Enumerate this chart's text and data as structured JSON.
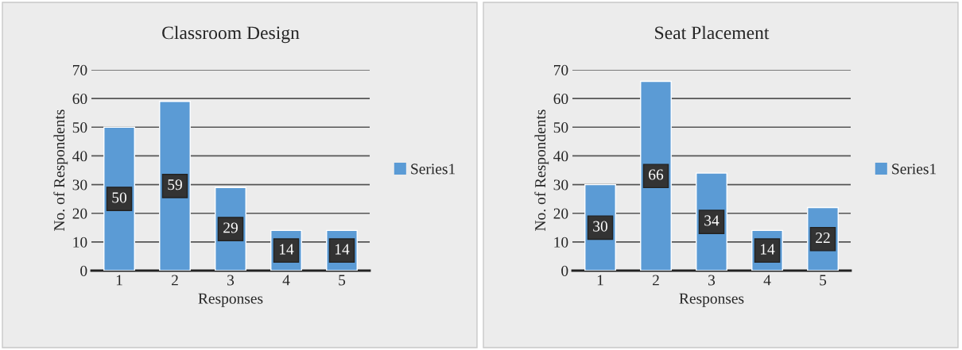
{
  "chart_data": [
    {
      "type": "bar",
      "title": "Classroom Design",
      "xlabel": "Responses",
      "ylabel": "No. of Respondents",
      "categories": [
        "1",
        "2",
        "3",
        "4",
        "5"
      ],
      "series": [
        {
          "name": "Series1",
          "color": "#5b9bd5",
          "values": [
            50,
            59,
            29,
            14,
            14
          ]
        }
      ],
      "ylim": [
        0,
        70
      ],
      "yticks": [
        0,
        10,
        20,
        30,
        40,
        50,
        60,
        70
      ],
      "grid": "y",
      "legend": "right",
      "data_labels": true
    },
    {
      "type": "bar",
      "title": "Seat Placement",
      "xlabel": "Responses",
      "ylabel": "No. of Respondents",
      "categories": [
        "1",
        "2",
        "3",
        "4",
        "5"
      ],
      "series": [
        {
          "name": "Series1",
          "color": "#5b9bd5",
          "values": [
            30,
            66,
            34,
            14,
            22
          ]
        }
      ],
      "ylim": [
        0,
        70
      ],
      "yticks": [
        0,
        10,
        20,
        30,
        40,
        50,
        60,
        70
      ],
      "grid": "y",
      "legend": "right",
      "data_labels": true
    }
  ]
}
